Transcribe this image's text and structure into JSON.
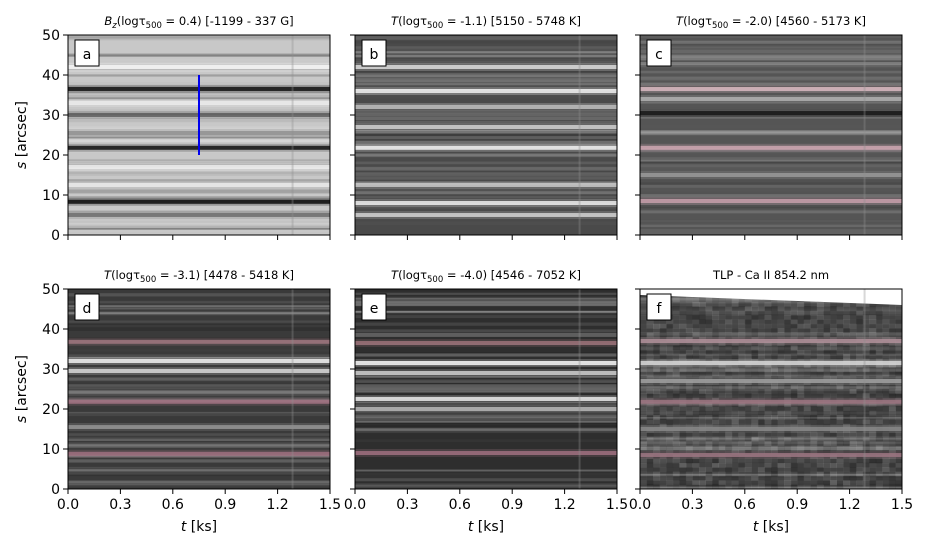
{
  "figure": {
    "x_tick_labels": [
      "0.0",
      "0.3",
      "0.6",
      "0.9",
      "1.2",
      "1.5"
    ],
    "y_tick_labels": [
      "0",
      "10",
      "20",
      "30",
      "40",
      "50"
    ],
    "xlabel_var": "t",
    "xlabel_unit": "[ks]",
    "ylabel_var": "s",
    "ylabel_unit": "[arcsec]"
  },
  "chart_data": [
    {
      "type": "heatmap",
      "panel_label": "a",
      "title_quantity": "B",
      "title_sub": "z",
      "title_arg": "(logτ",
      "title_argsub": "500",
      "title_rest": " = 0.4) [-1199 -  337 G]",
      "xlim": [
        0,
        1.5
      ],
      "ylim": [
        0,
        50
      ],
      "xlabel": "",
      "ylabel": "s [arcsec]",
      "colormap": "grey",
      "background": "#c8c8c8",
      "stripes": [
        {
          "s": 42.0,
          "tone": "#f4f4f4"
        },
        {
          "s": 36.5,
          "tone": "#141414"
        },
        {
          "s": 33.0,
          "tone": "#f0f0f0"
        },
        {
          "s": 30.0,
          "tone": "#606060"
        },
        {
          "s": 25.5,
          "tone": "#909090"
        },
        {
          "s": 21.8,
          "tone": "#101010"
        },
        {
          "s": 17.0,
          "tone": "#ededed"
        },
        {
          "s": 12.5,
          "tone": "#e8e8e8"
        },
        {
          "s": 8.3,
          "tone": "#0c0c0c"
        },
        {
          "s": 5.0,
          "tone": "#707070"
        }
      ],
      "annotation": {
        "type": "vertical_line",
        "t": 0.75,
        "s_start": 20,
        "s_end": 40,
        "color": "#0000ee"
      }
    },
    {
      "type": "heatmap",
      "panel_label": "b",
      "title_quantity": "T",
      "title_arg": "(logτ",
      "title_argsub": "500",
      "title_rest": " = -1.1) [5150 - 5748 K]",
      "xlim": [
        0,
        1.5
      ],
      "ylim": [
        0,
        50
      ],
      "xlabel": "",
      "ylabel": "",
      "colormap": "grey",
      "background": "#4a4a4a",
      "stripes": [
        {
          "s": 42.0,
          "tone": "#dcdcdc"
        },
        {
          "s": 36.0,
          "tone": "#f2f2f2"
        },
        {
          "s": 32.0,
          "tone": "#bdbdbd"
        },
        {
          "s": 27.0,
          "tone": "#d0d0d0"
        },
        {
          "s": 21.8,
          "tone": "#f4f4f4"
        },
        {
          "s": 12.5,
          "tone": "#c8c8c8"
        },
        {
          "s": 8.0,
          "tone": "#eeeeee"
        },
        {
          "s": 5.0,
          "tone": "#cfcfcf"
        }
      ]
    },
    {
      "type": "heatmap",
      "panel_label": "c",
      "title_quantity": "T",
      "title_arg": "(logτ",
      "title_argsub": "500",
      "title_rest": " = -2.0) [4560 - 5173 K]",
      "xlim": [
        0,
        1.5
      ],
      "ylim": [
        0,
        50
      ],
      "xlabel": "",
      "ylabel": "",
      "colormap": "grey",
      "background": "#555555",
      "stripes": [
        {
          "s": 36.5,
          "tone": "#d8b8c0"
        },
        {
          "s": 34.0,
          "tone": "#b0b0b0"
        },
        {
          "s": 30.5,
          "tone": "#1a1a1a"
        },
        {
          "s": 21.8,
          "tone": "#d0a8b4"
        },
        {
          "s": 15.0,
          "tone": "#9a9a9a"
        },
        {
          "s": 8.5,
          "tone": "#c8a0ac"
        }
      ]
    },
    {
      "type": "heatmap",
      "panel_label": "d",
      "title_quantity": "T",
      "title_arg": "(logτ",
      "title_argsub": "500",
      "title_rest": " = -3.1) [4478 - 5418 K]",
      "xlim": [
        0,
        1.5
      ],
      "ylim": [
        0,
        50
      ],
      "xlabel": "t [ks]",
      "ylabel": "s [arcsec]",
      "colormap": "grey",
      "background": "#3a3a3a",
      "stripes": [
        {
          "s": 36.8,
          "tone": "#a07880"
        },
        {
          "s": 32.0,
          "tone": "#f2f2f2"
        },
        {
          "s": 29.5,
          "tone": "#d8d8d8"
        },
        {
          "s": 21.8,
          "tone": "#a07080"
        },
        {
          "s": 15.5,
          "tone": "#909090"
        },
        {
          "s": 8.8,
          "tone": "#a07080"
        }
      ]
    },
    {
      "type": "heatmap",
      "panel_label": "e",
      "title_quantity": "T",
      "title_arg": "(logτ",
      "title_argsub": "500",
      "title_rest": " = -4.0) [4546 - 7052 K]",
      "xlim": [
        0,
        1.5
      ],
      "ylim": [
        0,
        50
      ],
      "xlabel": "t [ks]",
      "ylabel": "",
      "colormap": "grey",
      "background": "#2e2e2e",
      "stripes": [
        {
          "s": 36.5,
          "tone": "#9a7078"
        },
        {
          "s": 31.5,
          "tone": "#f4f4f4"
        },
        {
          "s": 29.0,
          "tone": "#cfcfcf"
        },
        {
          "s": 22.5,
          "tone": "#e8e8e8"
        },
        {
          "s": 20.0,
          "tone": "#b8b8b8"
        },
        {
          "s": 9.0,
          "tone": "#a07080"
        }
      ]
    },
    {
      "type": "heatmap",
      "panel_label": "f",
      "title_text": "TLP - Ca II 854.2 nm",
      "xlim": [
        0,
        1.5
      ],
      "ylim": [
        0,
        50
      ],
      "xlabel": "t [ks]",
      "ylabel": "",
      "colormap": "grey",
      "background": "#3c3c3c",
      "stripes": [
        {
          "s": 37.0,
          "tone": "#b0909a"
        },
        {
          "s": 31.5,
          "tone": "#d8d8d8"
        },
        {
          "s": 27.0,
          "tone": "#a0a0a0"
        },
        {
          "s": 21.8,
          "tone": "#a07884"
        },
        {
          "s": 15.0,
          "tone": "#8a8a8a"
        },
        {
          "s": 8.5,
          "tone": "#9a7480"
        }
      ]
    }
  ]
}
